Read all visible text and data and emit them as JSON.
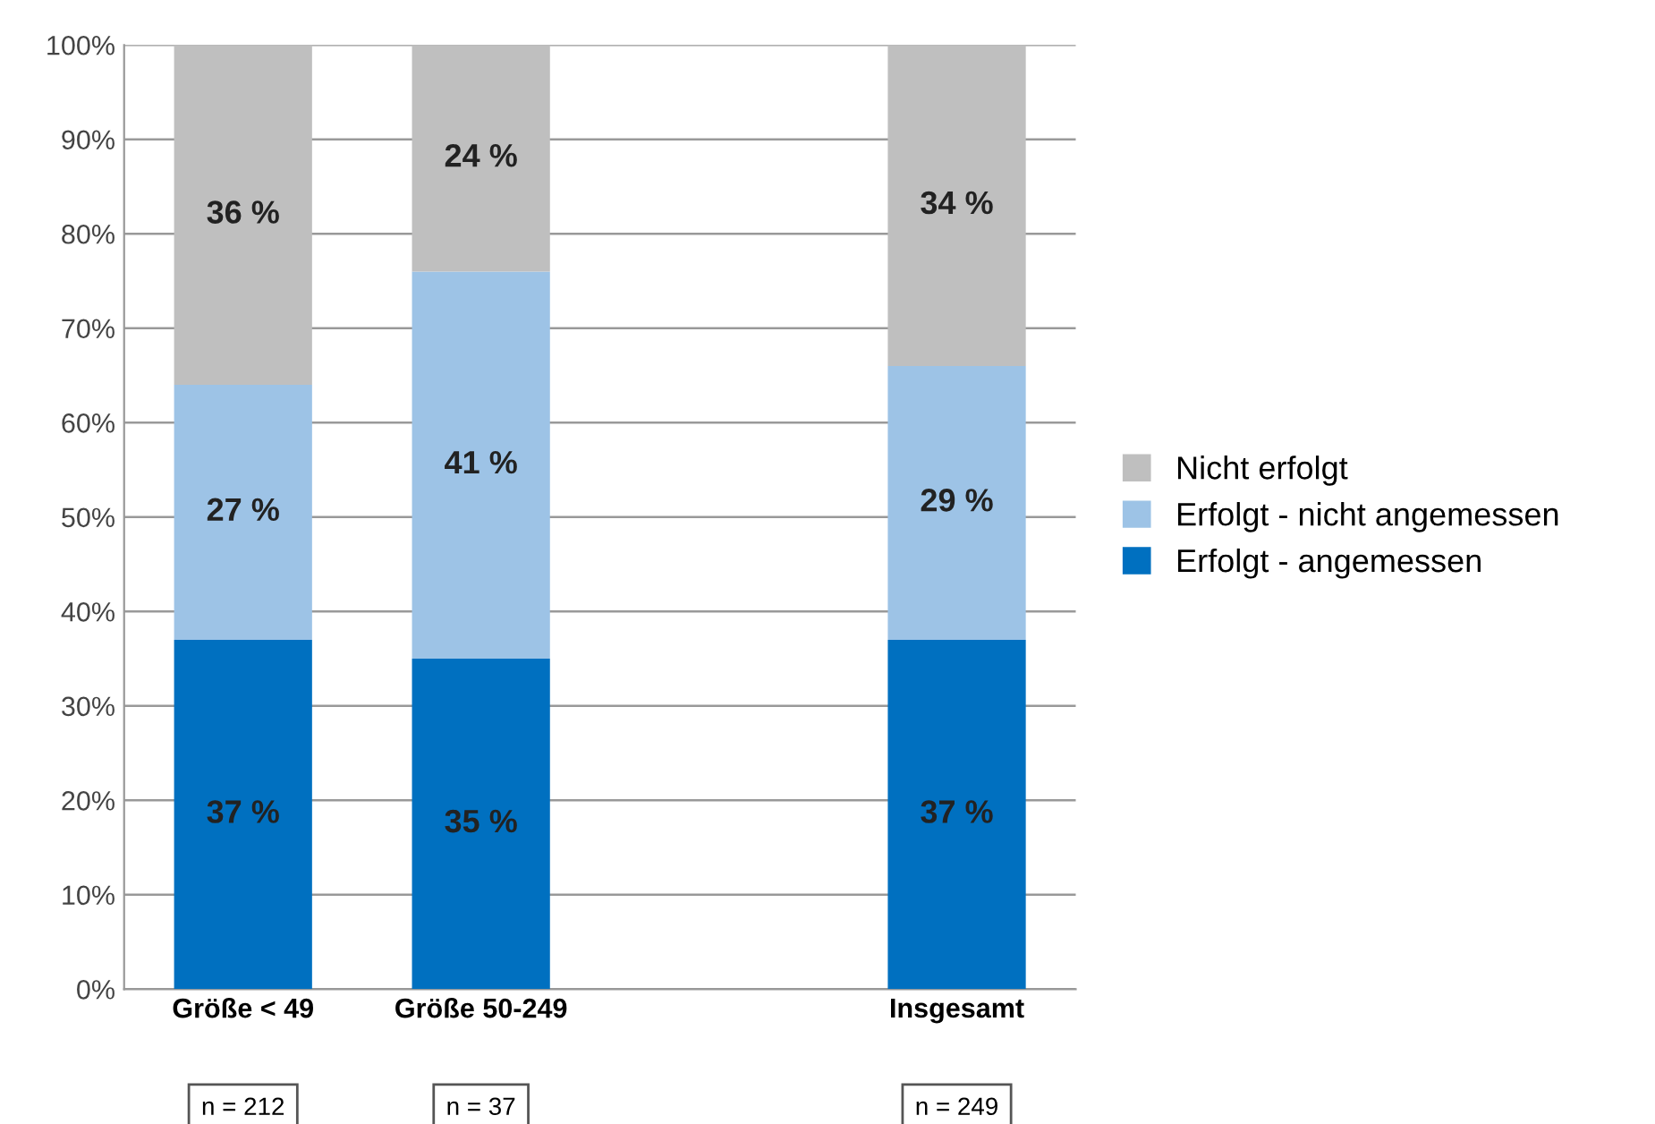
{
  "chart_data": {
    "type": "bar",
    "stacked": true,
    "categories": [
      "Größe < 49",
      "Größe 50-249",
      null,
      "Insgesamt"
    ],
    "series": [
      {
        "name": "Erfolgt - angemessen",
        "color": "#0070c0",
        "values": [
          37,
          35,
          null,
          37
        ],
        "value_labels": [
          "37 %",
          "35 %",
          null,
          "37 %"
        ]
      },
      {
        "name": "Erfolgt - nicht angemessen",
        "color": "#9dc3e6",
        "values": [
          27,
          41,
          null,
          29
        ],
        "value_labels": [
          "27 %",
          "41 %",
          null,
          "29 %"
        ]
      },
      {
        "name": "Nicht erfolgt",
        "color": "#bfbfbf",
        "values": [
          36,
          24,
          null,
          34
        ],
        "value_labels": [
          "36 %",
          "24 %",
          null,
          "34 %"
        ]
      }
    ],
    "ylim": [
      0,
      100
    ],
    "yticks": [
      {
        "value": 0,
        "label": "0%"
      },
      {
        "value": 10,
        "label": "10%"
      },
      {
        "value": 20,
        "label": "20%"
      },
      {
        "value": 30,
        "label": "30%"
      },
      {
        "value": 40,
        "label": "40%"
      },
      {
        "value": 50,
        "label": "50%"
      },
      {
        "value": 60,
        "label": "60%"
      },
      {
        "value": 70,
        "label": "70%"
      },
      {
        "value": 80,
        "label": "80%"
      },
      {
        "value": 90,
        "label": "90%"
      },
      {
        "value": 100,
        "label": "100%"
      }
    ],
    "grid": "y",
    "legend": "right",
    "annotations": [
      "n = 212",
      "n = 37",
      "n = 249"
    ]
  }
}
